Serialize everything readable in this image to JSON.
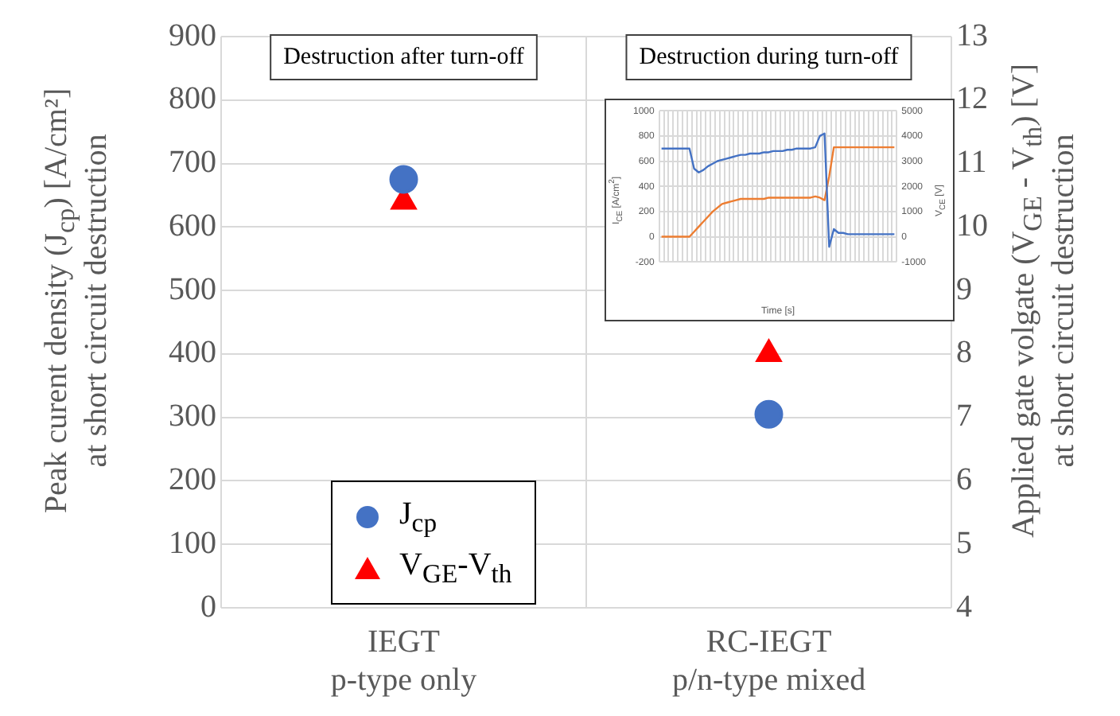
{
  "chart_data": [
    {
      "type": "scatter",
      "categories": [
        "IEGT\np-type only",
        "RC-IEGT\np/n-type mixed"
      ],
      "ylabel": "Peak curent density (J$_{cp}$) [A/cm²]\nat short circuit destruction",
      "y2label": "Applied gate volgate (V$_{GE}$ - V$_{th}$) [V]\nat short circuit destruction",
      "ylim": [
        0,
        900
      ],
      "yticks": [
        0,
        100,
        200,
        300,
        400,
        500,
        600,
        700,
        800,
        900
      ],
      "y2lim": [
        4,
        13
      ],
      "y2ticks": [
        4,
        5,
        6,
        7,
        8,
        9,
        10,
        11,
        12,
        13
      ],
      "series": [
        {
          "name": "J$_{cp}$",
          "color": "#4472c4",
          "marker": "circle",
          "values": [
            675,
            305
          ]
        },
        {
          "name": "V$_{GE}$-V$_{th}$",
          "color": "#ff0000",
          "marker": "triangle",
          "axis": "y2",
          "values": [
            10.4,
            8.0
          ]
        }
      ],
      "annotations": [
        "Destruction after turn-off",
        "Destruction during turn-off"
      ],
      "grid": true,
      "legend": "bottom left"
    },
    {
      "type": "line",
      "categories": [
        null,
        null,
        null,
        null,
        null,
        null,
        null,
        null,
        null,
        null,
        null,
        null,
        null,
        null,
        null,
        null,
        null,
        null,
        null,
        null,
        null,
        null,
        null,
        null,
        null,
        null,
        null,
        null,
        null,
        null,
        null,
        null,
        null,
        null,
        null,
        null,
        null,
        null,
        null,
        null,
        null,
        null,
        null,
        null,
        null,
        null,
        null,
        null,
        null,
        null,
        null
      ],
      "xlabel": "Time [s]",
      "ylabel": "I$_{CE}$ [A/cm$^{2}$]",
      "y2label": "V$_{CE}$ [V]",
      "ylim": [
        -200,
        1000
      ],
      "yticks": [
        -200,
        0,
        200,
        400,
        600,
        800,
        1000
      ],
      "y2lim": [
        -1000,
        5000
      ],
      "y2ticks": [
        -1000,
        0,
        1000,
        2000,
        3000,
        4000,
        5000
      ],
      "series": [
        {
          "color": "#4472c4",
          "values": [
            700,
            700,
            700,
            700,
            700,
            700,
            700,
            540,
            510,
            530,
            560,
            580,
            600,
            610,
            620,
            630,
            640,
            650,
            650,
            660,
            660,
            660,
            670,
            670,
            680,
            680,
            680,
            690,
            690,
            700,
            700,
            700,
            700,
            710,
            800,
            820,
            -80,
            60,
            30,
            30,
            20,
            20,
            20,
            20,
            20,
            20,
            20,
            20,
            20,
            20,
            20
          ]
        },
        {
          "color": "#ed7d31",
          "axis": "y2",
          "values": [
            0,
            0,
            0,
            0,
            0,
            0,
            0,
            200,
            400,
            600,
            800,
            1000,
            1150,
            1300,
            1350,
            1400,
            1450,
            1500,
            1500,
            1500,
            1500,
            1500,
            1500,
            1550,
            1550,
            1550,
            1550,
            1550,
            1550,
            1550,
            1550,
            1550,
            1550,
            1600,
            1550,
            1450,
            2400,
            3550,
            3550,
            3550,
            3550,
            3550,
            3550,
            3550,
            3550,
            3550,
            3550,
            3550,
            3550,
            3550,
            3550
          ]
        }
      ],
      "grid": true,
      "line_style": "solid",
      "marker": "none"
    }
  ]
}
